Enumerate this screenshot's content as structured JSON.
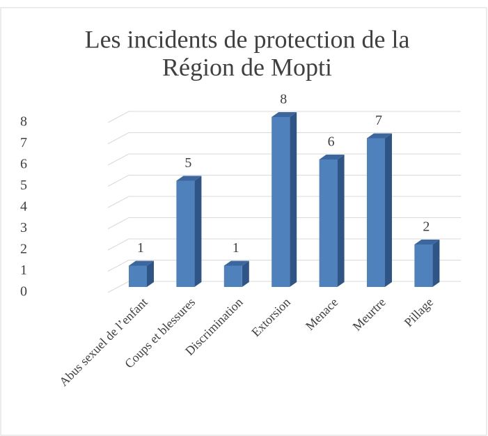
{
  "chart_data": {
    "type": "bar3d",
    "title": [
      "Les incidents de protection de la",
      "Région de Mopti"
    ],
    "categories": [
      "Abus sexuel de l’enfant",
      "Coups et blessures",
      "Discrimination",
      "Extorsion",
      "Menace",
      "Meurtre",
      "Pillage"
    ],
    "values": [
      1,
      5,
      1,
      8,
      6,
      7,
      2
    ],
    "color": "#4f81bd",
    "ylim": [
      0,
      8
    ],
    "yticks": [
      0,
      1,
      2,
      3,
      4,
      5,
      6,
      7,
      8
    ],
    "grid": true
  }
}
